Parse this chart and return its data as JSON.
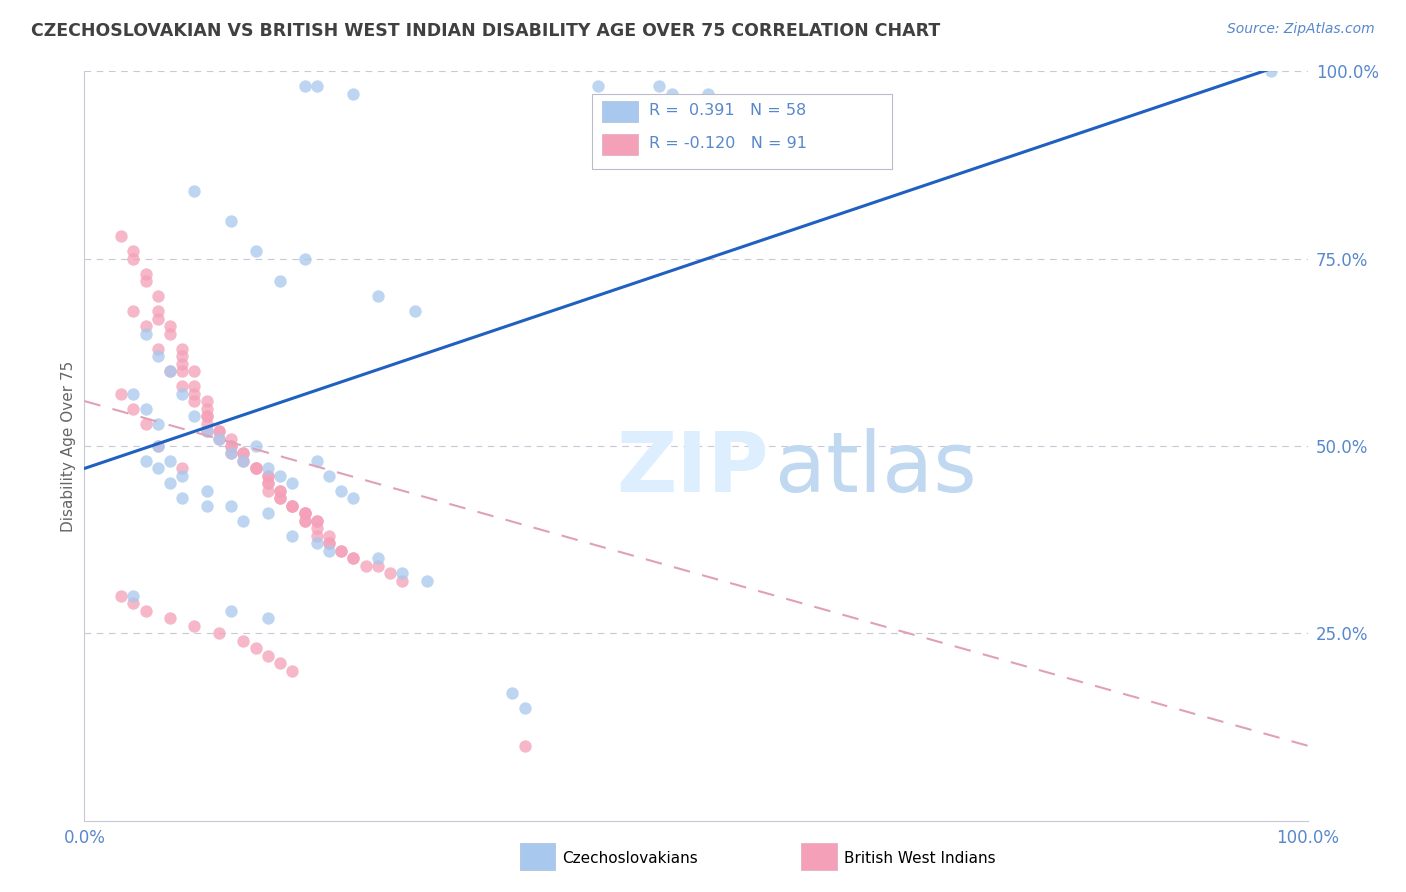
{
  "title": "CZECHOSLOVAKIAN VS BRITISH WEST INDIAN DISABILITY AGE OVER 75 CORRELATION CHART",
  "source": "Source: ZipAtlas.com",
  "ylabel": "Disability Age Over 75",
  "xlim": [
    0.0,
    1.0
  ],
  "ylim": [
    0.0,
    1.0
  ],
  "r1": 0.391,
  "n1": 58,
  "r2": -0.12,
  "n2": 91,
  "color1": "#a8c8ee",
  "color2": "#f4a0b8",
  "line1_color": "#2060c0",
  "line2_color": "#e0a0b8",
  "legend_label1": "Czechoslovakians",
  "legend_label2": "British West Indians",
  "background_color": "#ffffff",
  "grid_color": "#c8c8d8",
  "title_color": "#404040",
  "axis_color": "#5888cc",
  "line1_x0": 0.0,
  "line1_y0": 0.47,
  "line1_x1": 1.0,
  "line1_y1": 1.02,
  "line2_x0": 0.0,
  "line2_y0": 0.56,
  "line2_x1": 1.0,
  "line2_y1": 0.1,
  "czech_x": [
    0.18,
    0.19,
    0.22,
    0.42,
    0.48,
    0.51,
    0.47,
    0.97,
    0.09,
    0.12,
    0.14,
    0.16,
    0.18,
    0.24,
    0.27,
    0.05,
    0.06,
    0.07,
    0.08,
    0.09,
    0.1,
    0.11,
    0.12,
    0.13,
    0.14,
    0.15,
    0.16,
    0.17,
    0.19,
    0.2,
    0.21,
    0.22,
    0.05,
    0.06,
    0.07,
    0.08,
    0.1,
    0.13,
    0.15,
    0.17,
    0.19,
    0.2,
    0.24,
    0.26,
    0.28,
    0.04,
    0.12,
    0.15,
    0.36,
    0.35,
    0.04,
    0.05,
    0.06,
    0.06,
    0.07,
    0.08,
    0.1,
    0.12
  ],
  "czech_y": [
    0.98,
    0.98,
    0.97,
    0.98,
    0.97,
    0.97,
    0.98,
    1.0,
    0.84,
    0.8,
    0.76,
    0.72,
    0.75,
    0.7,
    0.68,
    0.65,
    0.62,
    0.6,
    0.57,
    0.54,
    0.52,
    0.51,
    0.49,
    0.48,
    0.5,
    0.47,
    0.46,
    0.45,
    0.48,
    0.46,
    0.44,
    0.43,
    0.48,
    0.47,
    0.45,
    0.43,
    0.42,
    0.4,
    0.41,
    0.38,
    0.37,
    0.36,
    0.35,
    0.33,
    0.32,
    0.3,
    0.28,
    0.27,
    0.15,
    0.17,
    0.57,
    0.55,
    0.53,
    0.5,
    0.48,
    0.46,
    0.44,
    0.42
  ],
  "bwi_x": [
    0.03,
    0.03,
    0.04,
    0.04,
    0.04,
    0.05,
    0.05,
    0.05,
    0.06,
    0.06,
    0.06,
    0.07,
    0.07,
    0.07,
    0.08,
    0.08,
    0.08,
    0.08,
    0.09,
    0.09,
    0.09,
    0.09,
    0.1,
    0.1,
    0.1,
    0.1,
    0.1,
    0.11,
    0.11,
    0.11,
    0.12,
    0.12,
    0.12,
    0.13,
    0.13,
    0.13,
    0.14,
    0.14,
    0.14,
    0.15,
    0.15,
    0.15,
    0.15,
    0.15,
    0.16,
    0.16,
    0.16,
    0.16,
    0.17,
    0.17,
    0.17,
    0.18,
    0.18,
    0.18,
    0.18,
    0.19,
    0.19,
    0.19,
    0.2,
    0.2,
    0.2,
    0.21,
    0.21,
    0.22,
    0.22,
    0.23,
    0.24,
    0.25,
    0.26,
    0.04,
    0.05,
    0.06,
    0.07,
    0.08,
    0.09,
    0.1,
    0.11,
    0.12,
    0.13,
    0.14,
    0.15,
    0.16,
    0.17,
    0.18,
    0.19,
    0.03,
    0.04,
    0.05,
    0.06,
    0.08,
    0.36
  ],
  "bwi_y": [
    0.78,
    0.3,
    0.76,
    0.75,
    0.29,
    0.73,
    0.72,
    0.28,
    0.7,
    0.68,
    0.67,
    0.66,
    0.65,
    0.27,
    0.63,
    0.62,
    0.61,
    0.6,
    0.6,
    0.58,
    0.57,
    0.26,
    0.56,
    0.55,
    0.54,
    0.53,
    0.52,
    0.52,
    0.51,
    0.25,
    0.51,
    0.5,
    0.49,
    0.49,
    0.48,
    0.24,
    0.47,
    0.47,
    0.23,
    0.46,
    0.46,
    0.45,
    0.44,
    0.22,
    0.44,
    0.43,
    0.43,
    0.21,
    0.42,
    0.42,
    0.2,
    0.41,
    0.41,
    0.4,
    0.4,
    0.4,
    0.39,
    0.38,
    0.38,
    0.37,
    0.37,
    0.36,
    0.36,
    0.35,
    0.35,
    0.34,
    0.34,
    0.33,
    0.32,
    0.68,
    0.66,
    0.63,
    0.6,
    0.58,
    0.56,
    0.54,
    0.52,
    0.5,
    0.49,
    0.47,
    0.45,
    0.44,
    0.42,
    0.41,
    0.4,
    0.57,
    0.55,
    0.53,
    0.5,
    0.47,
    0.1
  ]
}
